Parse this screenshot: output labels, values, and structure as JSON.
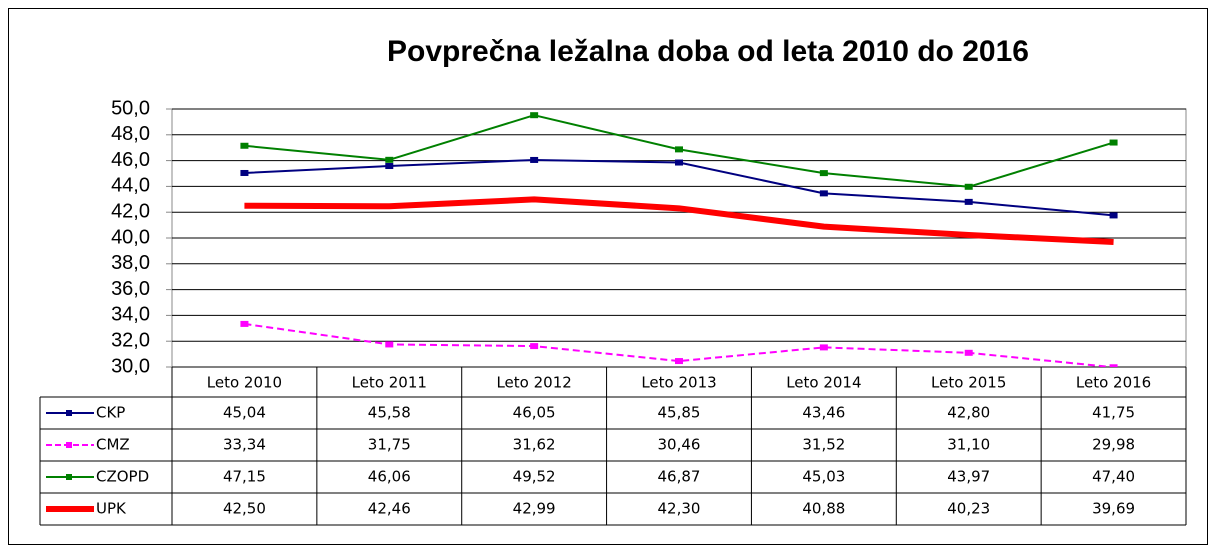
{
  "chart_data": {
    "type": "line",
    "title": "Povprečna ležalna doba od leta 2010 do 2016",
    "categories": [
      "Leto 2010",
      "Leto 2011",
      "Leto 2012",
      "Leto 2013",
      "Leto 2014",
      "Leto 2015",
      "Leto 2016"
    ],
    "ylim": [
      30,
      50
    ],
    "yticks": [
      {
        "value": 30,
        "label": "30,0"
      },
      {
        "value": 32,
        "label": "32,0"
      },
      {
        "value": 34,
        "label": "34,0"
      },
      {
        "value": 36,
        "label": "36,0"
      },
      {
        "value": 38,
        "label": "38,0"
      },
      {
        "value": 40,
        "label": "40,0"
      },
      {
        "value": 42,
        "label": "42,0"
      },
      {
        "value": 44,
        "label": "44,0"
      },
      {
        "value": 46,
        "label": "46,0"
      },
      {
        "value": 48,
        "label": "48,0"
      },
      {
        "value": 50,
        "label": "50,0"
      }
    ],
    "grid": true,
    "series": [
      {
        "name": "CKP",
        "color": "#000080",
        "line_width": 2,
        "dash": false,
        "markers": true,
        "values": [
          45.04,
          45.58,
          46.05,
          45.85,
          43.46,
          42.8,
          41.75
        ],
        "value_labels": [
          "45,04",
          "45,58",
          "46,05",
          "45,85",
          "43,46",
          "42,80",
          "41,75"
        ]
      },
      {
        "name": "CMZ",
        "color": "#ff00ff",
        "line_width": 2,
        "dash": true,
        "markers": true,
        "values": [
          33.34,
          31.75,
          31.62,
          30.46,
          31.52,
          31.1,
          29.98
        ],
        "value_labels": [
          "33,34",
          "31,75",
          "31,62",
          "30,46",
          "31,52",
          "31,10",
          "29,98"
        ]
      },
      {
        "name": "CZOPD",
        "color": "#008000",
        "line_width": 2,
        "dash": false,
        "markers": true,
        "values": [
          47.15,
          46.06,
          49.52,
          46.87,
          45.03,
          43.97,
          47.4
        ],
        "value_labels": [
          "47,15",
          "46,06",
          "49,52",
          "46,87",
          "45,03",
          "43,97",
          "47,40"
        ]
      },
      {
        "name": "UPK",
        "color": "#ff0000",
        "line_width": 6,
        "dash": false,
        "markers": false,
        "values": [
          42.5,
          42.46,
          42.99,
          42.3,
          40.88,
          40.23,
          39.69
        ],
        "value_labels": [
          "42,50",
          "42,46",
          "42,99",
          "42,30",
          "40,88",
          "40,23",
          "39,69"
        ]
      }
    ]
  }
}
